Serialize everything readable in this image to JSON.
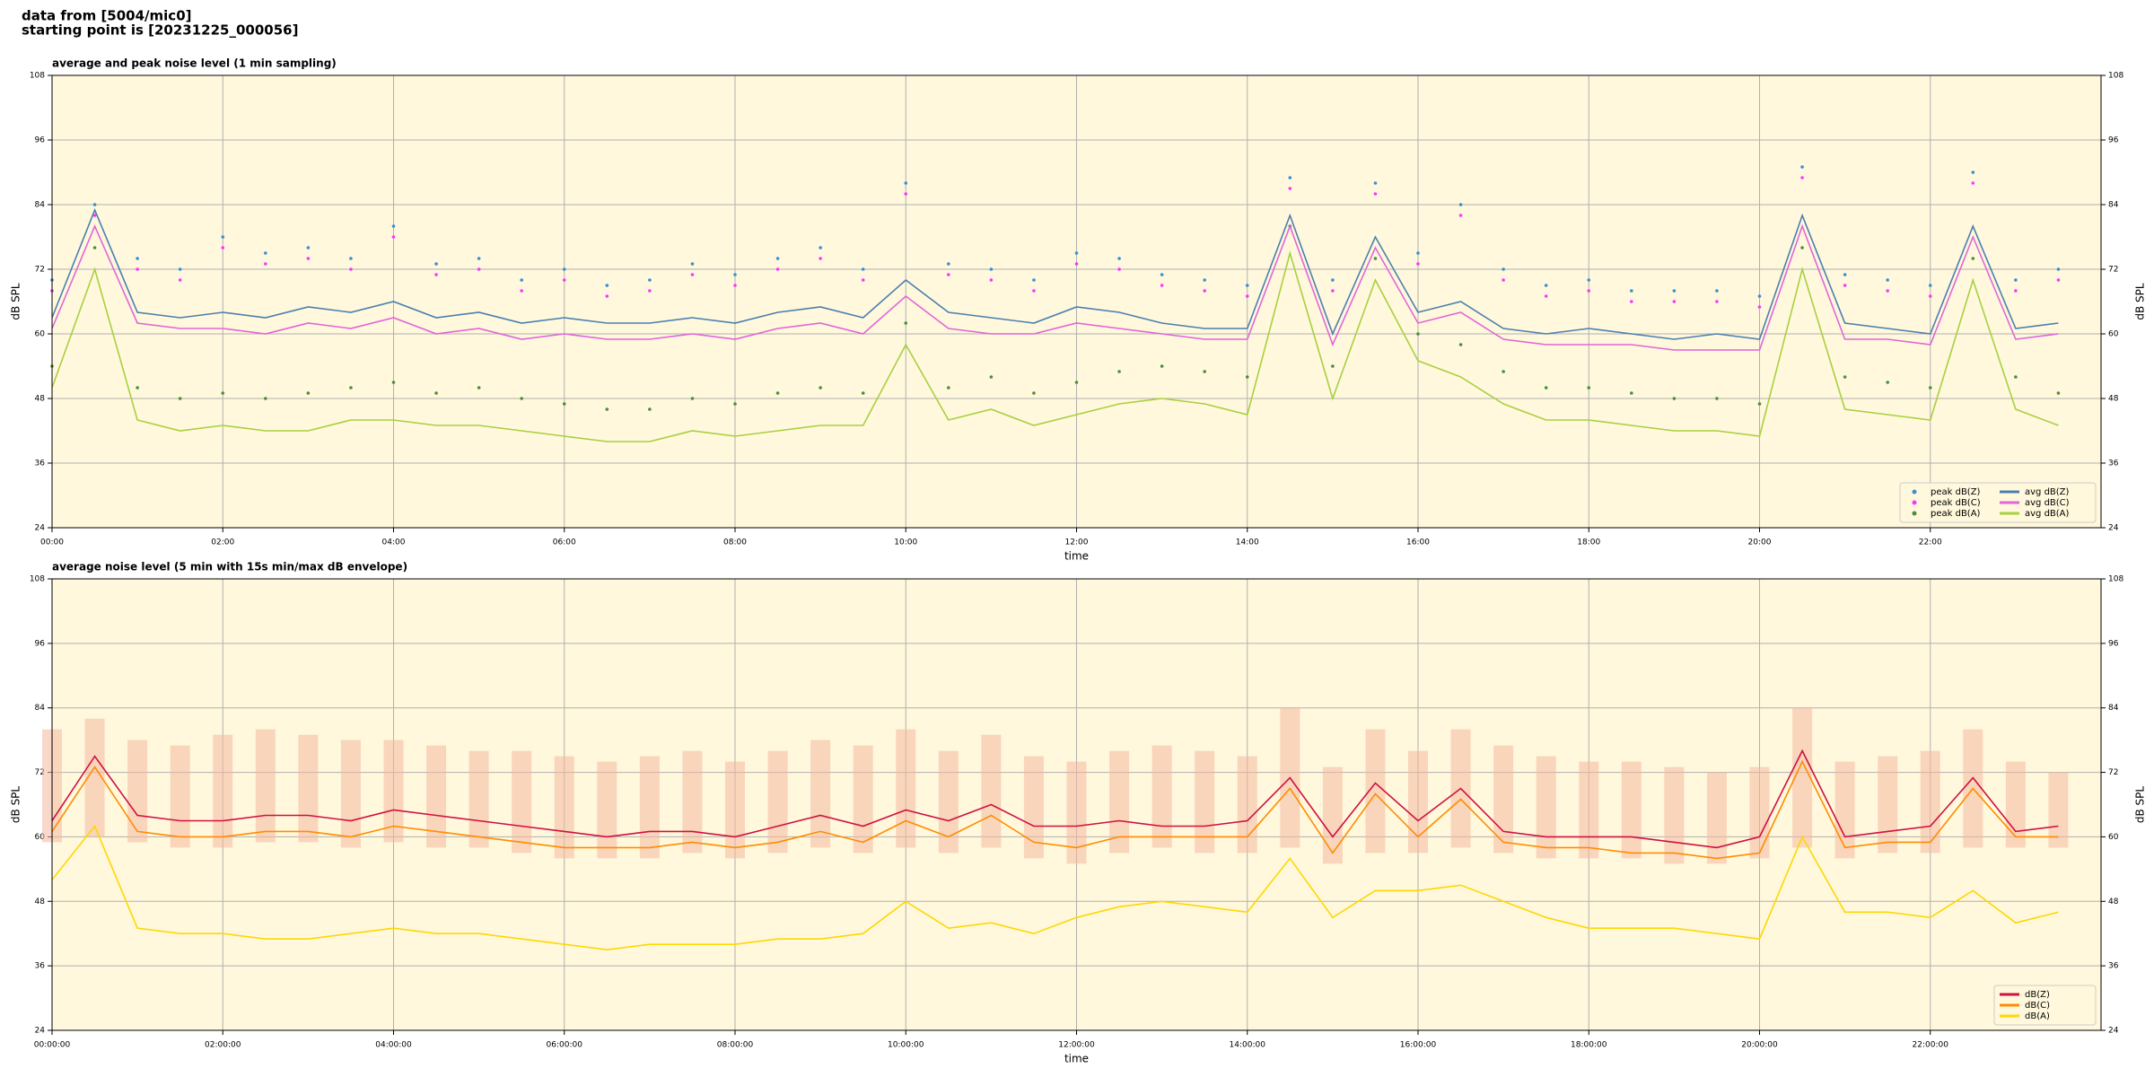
{
  "header": {
    "line1": "data from [5004/mic0]",
    "line2": "starting point is [20231225_000056]"
  },
  "chart_data": [
    {
      "type": "line",
      "title": "average and peak noise level (1 min sampling)",
      "xlabel": "time",
      "ylabel": "dB SPL",
      "xlim": [
        0,
        24
      ],
      "ylim": [
        24,
        108
      ],
      "yticks": [
        24,
        36,
        48,
        60,
        72,
        84,
        96,
        108
      ],
      "xticks": [
        {
          "value": 0,
          "label": "00:00"
        },
        {
          "value": 2,
          "label": "02:00"
        },
        {
          "value": 4,
          "label": "04:00"
        },
        {
          "value": 6,
          "label": "06:00"
        },
        {
          "value": 8,
          "label": "08:00"
        },
        {
          "value": 10,
          "label": "10:00"
        },
        {
          "value": 12,
          "label": "12:00"
        },
        {
          "value": 14,
          "label": "14:00"
        },
        {
          "value": 16,
          "label": "16:00"
        },
        {
          "value": 18,
          "label": "18:00"
        },
        {
          "value": 20,
          "label": "20:00"
        },
        {
          "value": 22,
          "label": "22:00"
        }
      ],
      "grid": true,
      "background": "#fff8dc",
      "legend": "lower right",
      "legend_columns": 2,
      "x": [
        0,
        0.5,
        1,
        1.5,
        2,
        2.5,
        3,
        3.5,
        4,
        4.5,
        5,
        5.5,
        6,
        6.5,
        7,
        7.5,
        8,
        8.5,
        9,
        9.5,
        10,
        10.5,
        11,
        11.5,
        12,
        12.5,
        13,
        13.5,
        14,
        14.5,
        15,
        15.5,
        16,
        16.5,
        17,
        17.5,
        18,
        18.5,
        19,
        19.5,
        20,
        20.5,
        21,
        21.5,
        22,
        22.5,
        23,
        23.5
      ],
      "series": [
        {
          "name": "peak dB(Z)",
          "style": "scatter",
          "color": "#3a8fd0",
          "values": [
            70,
            84,
            74,
            72,
            78,
            75,
            76,
            74,
            80,
            73,
            74,
            70,
            72,
            69,
            70,
            73,
            71,
            74,
            76,
            72,
            88,
            73,
            72,
            70,
            75,
            74,
            71,
            70,
            69,
            89,
            70,
            88,
            75,
            84,
            72,
            69,
            70,
            68,
            68,
            68,
            67,
            91,
            71,
            70,
            69,
            90,
            70,
            72
          ]
        },
        {
          "name": "peak dB(C)",
          "style": "scatter",
          "color": "#ff33ff",
          "values": [
            68,
            82,
            72,
            70,
            76,
            73,
            74,
            72,
            78,
            71,
            72,
            68,
            70,
            67,
            68,
            71,
            69,
            72,
            74,
            70,
            86,
            71,
            70,
            68,
            73,
            72,
            69,
            68,
            67,
            87,
            68,
            86,
            73,
            82,
            70,
            67,
            68,
            66,
            66,
            66,
            65,
            89,
            69,
            68,
            67,
            88,
            68,
            70
          ]
        },
        {
          "name": "peak dB(A)",
          "style": "scatter",
          "color": "#4a8f3a",
          "values": [
            54,
            76,
            50,
            48,
            49,
            48,
            49,
            50,
            51,
            49,
            50,
            48,
            47,
            46,
            46,
            48,
            47,
            49,
            50,
            49,
            62,
            50,
            52,
            49,
            51,
            53,
            54,
            53,
            52,
            80,
            54,
            74,
            60,
            58,
            53,
            50,
            50,
            49,
            48,
            48,
            47,
            76,
            52,
            51,
            50,
            74,
            52,
            49
          ]
        },
        {
          "name": "avg dB(Z)",
          "style": "line",
          "color": "#4a7fb0",
          "values": [
            63,
            83,
            64,
            63,
            64,
            63,
            65,
            64,
            66,
            63,
            64,
            62,
            63,
            62,
            62,
            63,
            62,
            64,
            65,
            63,
            70,
            64,
            63,
            62,
            65,
            64,
            62,
            61,
            61,
            82,
            60,
            78,
            64,
            66,
            61,
            60,
            61,
            60,
            59,
            60,
            59,
            82,
            62,
            61,
            60,
            80,
            61,
            62
          ]
        },
        {
          "name": "avg dB(C)",
          "style": "line",
          "color": "#e066d8",
          "values": [
            61,
            80,
            62,
            61,
            61,
            60,
            62,
            61,
            63,
            60,
            61,
            59,
            60,
            59,
            59,
            60,
            59,
            61,
            62,
            60,
            67,
            61,
            60,
            60,
            62,
            61,
            60,
            59,
            59,
            80,
            58,
            76,
            62,
            64,
            59,
            58,
            58,
            58,
            57,
            57,
            57,
            80,
            59,
            59,
            58,
            78,
            59,
            60
          ]
        },
        {
          "name": "avg dB(A)",
          "style": "line",
          "color": "#a8d040",
          "values": [
            50,
            72,
            44,
            42,
            43,
            42,
            42,
            44,
            44,
            43,
            43,
            42,
            41,
            40,
            40,
            42,
            41,
            42,
            43,
            43,
            58,
            44,
            46,
            43,
            45,
            47,
            48,
            47,
            45,
            75,
            48,
            70,
            55,
            52,
            47,
            44,
            44,
            43,
            42,
            42,
            41,
            72,
            46,
            45,
            44,
            70,
            46,
            43
          ]
        }
      ]
    },
    {
      "type": "line",
      "title": "average noise level (5 min with 15s min/max dB envelope)",
      "xlabel": "time",
      "ylabel": "dB SPL",
      "xlim": [
        0,
        24
      ],
      "ylim": [
        24,
        108
      ],
      "yticks": [
        24,
        36,
        48,
        60,
        72,
        84,
        96,
        108
      ],
      "xticks": [
        {
          "value": 0,
          "label": "00:00:00"
        },
        {
          "value": 2,
          "label": "02:00:00"
        },
        {
          "value": 4,
          "label": "04:00:00"
        },
        {
          "value": 6,
          "label": "06:00:00"
        },
        {
          "value": 8,
          "label": "08:00:00"
        },
        {
          "value": 10,
          "label": "10:00:00"
        },
        {
          "value": 12,
          "label": "12:00:00"
        },
        {
          "value": 14,
          "label": "14:00:00"
        },
        {
          "value": 16,
          "label": "16:00:00"
        },
        {
          "value": 18,
          "label": "18:00:00"
        },
        {
          "value": 20,
          "label": "20:00:00"
        },
        {
          "value": 22,
          "label": "22:00:00"
        }
      ],
      "grid": true,
      "background": "#fff8dc",
      "legend": "lower right",
      "legend_columns": 1,
      "x": [
        0,
        0.5,
        1,
        1.5,
        2,
        2.5,
        3,
        3.5,
        4,
        4.5,
        5,
        5.5,
        6,
        6.5,
        7,
        7.5,
        8,
        8.5,
        9,
        9.5,
        10,
        10.5,
        11,
        11.5,
        12,
        12.5,
        13,
        13.5,
        14,
        14.5,
        15,
        15.5,
        16,
        16.5,
        17,
        17.5,
        18,
        18.5,
        19,
        19.5,
        20,
        20.5,
        21,
        21.5,
        22,
        22.5,
        23,
        23.5
      ],
      "envelope_color": "#f4b8a0",
      "envelope_max": [
        80,
        82,
        78,
        77,
        79,
        80,
        79,
        78,
        78,
        77,
        76,
        76,
        75,
        74,
        75,
        76,
        74,
        76,
        78,
        77,
        80,
        76,
        79,
        75,
        74,
        76,
        77,
        76,
        75,
        84,
        73,
        80,
        76,
        80,
        77,
        75,
        74,
        74,
        73,
        72,
        73,
        84,
        74,
        75,
        76,
        80,
        74,
        72
      ],
      "envelope_min": [
        59,
        60,
        59,
        58,
        58,
        59,
        59,
        58,
        59,
        58,
        58,
        57,
        56,
        56,
        56,
        57,
        56,
        57,
        58,
        57,
        58,
        57,
        58,
        56,
        55,
        57,
        58,
        57,
        57,
        58,
        55,
        57,
        57,
        58,
        57,
        56,
        56,
        56,
        55,
        55,
        56,
        58,
        56,
        57,
        57,
        58,
        58,
        58
      ],
      "series": [
        {
          "name": "dB(Z)",
          "style": "line",
          "color": "#d01040",
          "values": [
            63,
            75,
            64,
            63,
            63,
            64,
            64,
            63,
            65,
            64,
            63,
            62,
            61,
            60,
            61,
            61,
            60,
            62,
            64,
            62,
            65,
            63,
            66,
            62,
            62,
            63,
            62,
            62,
            63,
            71,
            60,
            70,
            63,
            69,
            61,
            60,
            60,
            60,
            59,
            58,
            60,
            76,
            60,
            61,
            62,
            71,
            61,
            62
          ]
        },
        {
          "name": "dB(C)",
          "style": "line",
          "color": "#ff8c00",
          "values": [
            61,
            73,
            61,
            60,
            60,
            61,
            61,
            60,
            62,
            61,
            60,
            59,
            58,
            58,
            58,
            59,
            58,
            59,
            61,
            59,
            63,
            60,
            64,
            59,
            58,
            60,
            60,
            60,
            60,
            69,
            57,
            68,
            60,
            67,
            59,
            58,
            58,
            57,
            57,
            56,
            57,
            74,
            58,
            59,
            59,
            69,
            60,
            60
          ]
        },
        {
          "name": "dB(A)",
          "style": "line",
          "color": "#ffd700",
          "values": [
            52,
            62,
            43,
            42,
            42,
            41,
            41,
            42,
            43,
            42,
            42,
            41,
            40,
            39,
            40,
            40,
            40,
            41,
            41,
            42,
            48,
            43,
            44,
            42,
            45,
            47,
            48,
            47,
            46,
            56,
            45,
            50,
            50,
            51,
            48,
            45,
            43,
            43,
            43,
            42,
            41,
            60,
            46,
            46,
            45,
            50,
            44,
            46
          ]
        }
      ]
    }
  ]
}
